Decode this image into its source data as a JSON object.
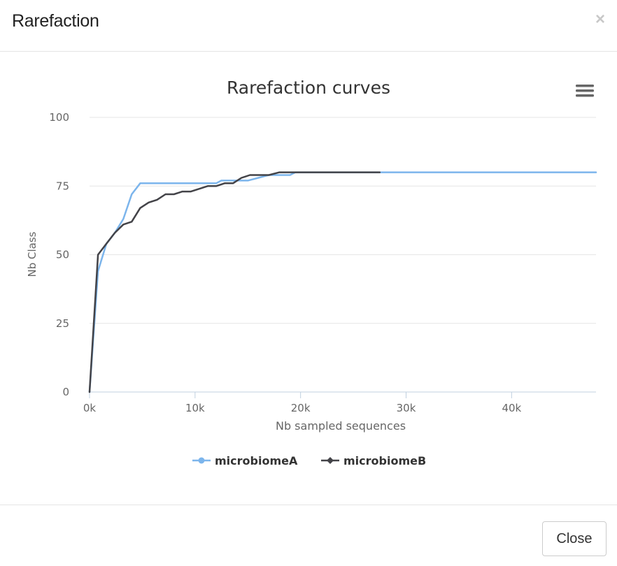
{
  "modal": {
    "title": "Rarefaction",
    "close_symbol": "×",
    "close_button_label": "Close"
  },
  "chart_data": {
    "type": "line",
    "title": "Rarefaction curves",
    "xlabel": "Nb sampled sequences",
    "ylabel": "Nb Class",
    "xlim": [
      0,
      48000
    ],
    "ylim": [
      0,
      100
    ],
    "x_ticks": [
      0,
      10000,
      20000,
      30000,
      40000
    ],
    "x_tick_labels": [
      "0k",
      "10k",
      "20k",
      "30k",
      "40k"
    ],
    "y_ticks": [
      0,
      25,
      50,
      75,
      100
    ],
    "y_tick_labels": [
      "0",
      "25",
      "50",
      "75",
      "100"
    ],
    "grid": "horizontal",
    "legend_position": "bottom-center",
    "menu_icon": "hamburger-menu-icon",
    "series": [
      {
        "name": "microbiomeA",
        "color": "#7cb5ec",
        "marker": "circle",
        "points": [
          [
            0,
            0
          ],
          [
            800,
            44
          ],
          [
            1600,
            54
          ],
          [
            2400,
            58
          ],
          [
            3200,
            63
          ],
          [
            4000,
            72
          ],
          [
            4800,
            76
          ],
          [
            6000,
            76
          ],
          [
            8000,
            76
          ],
          [
            10000,
            76
          ],
          [
            12000,
            76
          ],
          [
            12500,
            77
          ],
          [
            14000,
            77
          ],
          [
            15000,
            77
          ],
          [
            16000,
            78
          ],
          [
            17000,
            79
          ],
          [
            18000,
            79
          ],
          [
            19000,
            79
          ],
          [
            19500,
            80
          ],
          [
            20000,
            80
          ],
          [
            25000,
            80
          ],
          [
            30000,
            80
          ],
          [
            40000,
            80
          ],
          [
            48000,
            80
          ]
        ]
      },
      {
        "name": "microbiomeB",
        "color": "#434348",
        "marker": "diamond",
        "points": [
          [
            0,
            0
          ],
          [
            800,
            50
          ],
          [
            1600,
            54
          ],
          [
            2400,
            58
          ],
          [
            3200,
            61
          ],
          [
            4000,
            62
          ],
          [
            4800,
            67
          ],
          [
            5600,
            69
          ],
          [
            6400,
            70
          ],
          [
            7200,
            72
          ],
          [
            8000,
            72
          ],
          [
            8800,
            73
          ],
          [
            9600,
            73
          ],
          [
            10400,
            74
          ],
          [
            11200,
            75
          ],
          [
            12000,
            75
          ],
          [
            12800,
            76
          ],
          [
            13600,
            76
          ],
          [
            14400,
            78
          ],
          [
            15200,
            79
          ],
          [
            16000,
            79
          ],
          [
            17000,
            79
          ],
          [
            18000,
            80
          ],
          [
            19000,
            80
          ],
          [
            20000,
            80
          ],
          [
            25000,
            80
          ],
          [
            27500,
            80
          ]
        ]
      }
    ]
  }
}
